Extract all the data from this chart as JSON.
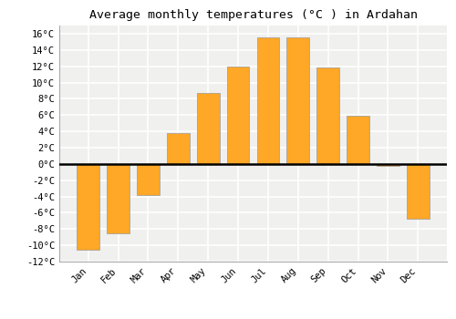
{
  "title": "Average monthly temperatures (°C ) in Ardahan",
  "months": [
    "Jan",
    "Feb",
    "Mar",
    "Apr",
    "May",
    "Jun",
    "Jul",
    "Aug",
    "Sep",
    "Oct",
    "Nov",
    "Dec"
  ],
  "values": [
    -10.5,
    -8.5,
    -3.8,
    3.8,
    8.7,
    12.0,
    15.5,
    15.5,
    11.8,
    5.9,
    -0.2,
    -6.7
  ],
  "bar_color": "#FFA726",
  "bar_edge_color": "#999999",
  "ylim": [
    -12,
    17
  ],
  "yticks": [
    -12,
    -10,
    -8,
    -6,
    -4,
    -2,
    0,
    2,
    4,
    6,
    8,
    10,
    12,
    14,
    16
  ],
  "background_color": "#ffffff",
  "plot_bg_color": "#f0f0ee",
  "grid_color": "#ffffff",
  "title_fontsize": 9.5,
  "tick_fontsize": 7.5,
  "bar_width": 0.75
}
